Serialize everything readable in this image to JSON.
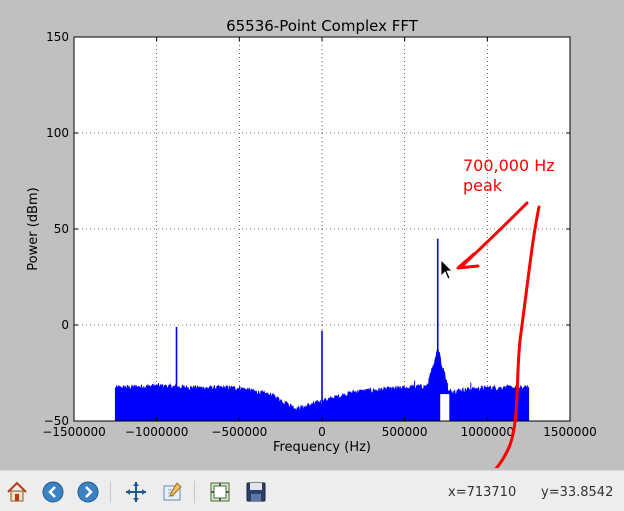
{
  "chart_data": {
    "type": "line",
    "title": "65536-Point Complex FFT",
    "xlabel": "Frequency (Hz)",
    "ylabel": "Power (dBm)",
    "xlim": [
      -1500000,
      1500000
    ],
    "ylim": [
      -50,
      150
    ],
    "xticks": [
      -1500000,
      -1000000,
      -500000,
      0,
      500000,
      1000000,
      1500000
    ],
    "xtick_labels": [
      "−1500000",
      "−1000000",
      "−500000",
      "0",
      "500000",
      "1000000",
      "1500000"
    ],
    "yticks": [
      -50,
      0,
      50,
      100,
      150
    ],
    "ytick_labels": [
      "−50",
      "0",
      "50",
      "100",
      "150"
    ],
    "grid": true,
    "series": [
      {
        "color": "#0000ff",
        "noise_floor": {
          "x": [
            -1250000,
            -1000000,
            -750000,
            -500000,
            -300000,
            -150000,
            0,
            200000,
            500000,
            650000,
            750000,
            1000000,
            1250000
          ],
          "y": [
            -33,
            -32,
            -33,
            -33,
            -37,
            -44,
            -40,
            -35,
            -33,
            -32,
            -35,
            -33,
            -33
          ]
        },
        "spikes": [
          {
            "x": -880000,
            "y": -1
          },
          {
            "x": 0,
            "y": -3
          },
          {
            "x": 700000,
            "y": 45
          }
        ]
      }
    ],
    "annotation": {
      "text_line1": "700,000 Hz",
      "text_line2": "peak",
      "color": "#ff0000"
    }
  },
  "toolbar": {
    "buttons": [
      {
        "name": "home-button",
        "icon": "home-icon"
      },
      {
        "name": "back-button",
        "icon": "arrow-left-icon"
      },
      {
        "name": "forward-button",
        "icon": "arrow-right-icon"
      },
      {
        "name": "pan-button",
        "icon": "move-icon"
      },
      {
        "name": "zoom-button",
        "icon": "zoom-rect-icon"
      },
      {
        "name": "subplots-button",
        "icon": "subplots-icon"
      },
      {
        "name": "save-button",
        "icon": "floppy-icon"
      }
    ],
    "coord_x": "x=713710",
    "coord_y": "y=33.8542"
  }
}
